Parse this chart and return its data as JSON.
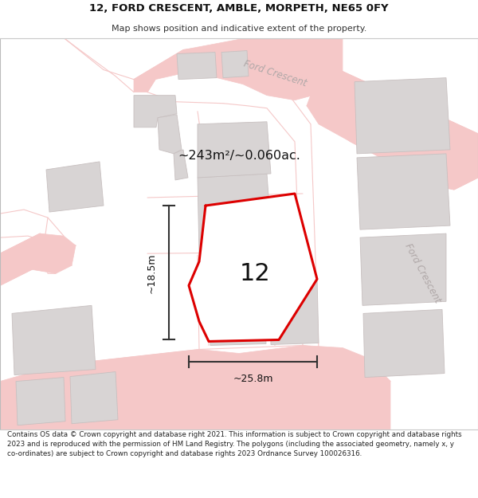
{
  "title_line1": "12, FORD CRESCENT, AMBLE, MORPETH, NE65 0FY",
  "title_line2": "Map shows position and indicative extent of the property.",
  "footer_text": "Contains OS data © Crown copyright and database right 2021. This information is subject to Crown copyright and database rights 2023 and is reproduced with the permission of HM Land Registry. The polygons (including the associated geometry, namely x, y co-ordinates) are subject to Crown copyright and database rights 2023 Ordnance Survey 100026316.",
  "area_label": "~243m²/~0.060ac.",
  "number_label": "12",
  "dim_height": "~18.5m",
  "dim_width": "~25.8m",
  "street_name_top": "Ford Crescent",
  "street_name_right": "Ford Crescent",
  "bg_color": "#ffffff",
  "map_bg": "#ffffff",
  "road_color": "#f5c8c8",
  "building_fill": "#d8d4d4",
  "building_edge": "#c8c0c0",
  "highlight_color": "#dd0000",
  "highlight_fill": "#ffffff",
  "dim_color": "#333333",
  "street_label_color": "#b0a8a8"
}
